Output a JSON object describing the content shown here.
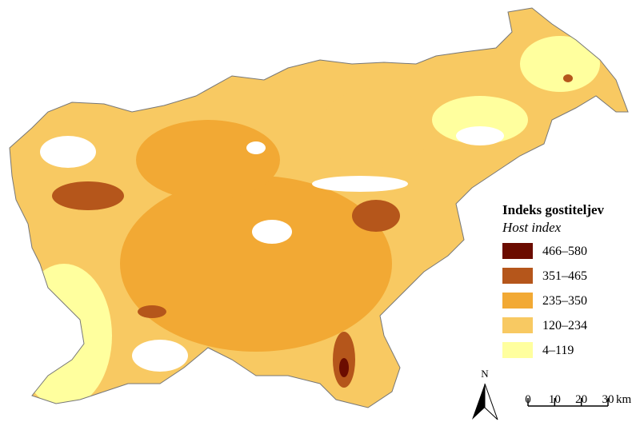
{
  "legend": {
    "title": "Indeks gostiteljev",
    "subtitle": "Host index",
    "items": [
      {
        "label": "466–580",
        "color": "#6b0c00"
      },
      {
        "label": "351–465",
        "color": "#b5561b"
      },
      {
        "label": "235–350",
        "color": "#f2a934"
      },
      {
        "label": "120–234",
        "color": "#f8c962"
      },
      {
        "label": "4–119",
        "color": "#ffff9e"
      }
    ]
  },
  "north_arrow": {
    "label": "N"
  },
  "scale_bar": {
    "ticks": [
      0,
      10,
      20,
      30
    ],
    "unit": "km"
  }
}
